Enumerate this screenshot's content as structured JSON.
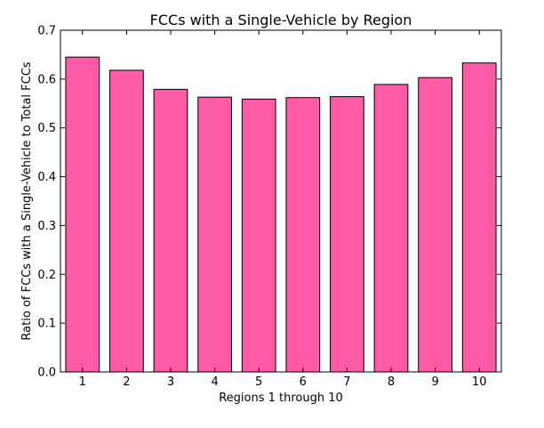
{
  "chart_data": {
    "type": "bar",
    "title": "FCCs with a Single-Vehicle by Region",
    "xlabel": "Regions 1 through 10",
    "ylabel": "Ratio of FCCs with a Single-Vehicle to Total FCCs",
    "categories": [
      "1",
      "2",
      "3",
      "4",
      "5",
      "6",
      "7",
      "8",
      "9",
      "10"
    ],
    "values": [
      0.645,
      0.618,
      0.579,
      0.563,
      0.559,
      0.562,
      0.564,
      0.589,
      0.603,
      0.633
    ],
    "ylim": [
      0,
      0.7
    ],
    "yticks": [
      0.0,
      0.1,
      0.2,
      0.3,
      0.4,
      0.5,
      0.6,
      0.7
    ],
    "ytick_labels": [
      "0.0",
      "0.1",
      "0.2",
      "0.3",
      "0.4",
      "0.5",
      "0.6",
      "0.7"
    ],
    "bar_color": "#ff5aa5",
    "edge_color": "#000000",
    "grid": false,
    "legend": "none"
  }
}
